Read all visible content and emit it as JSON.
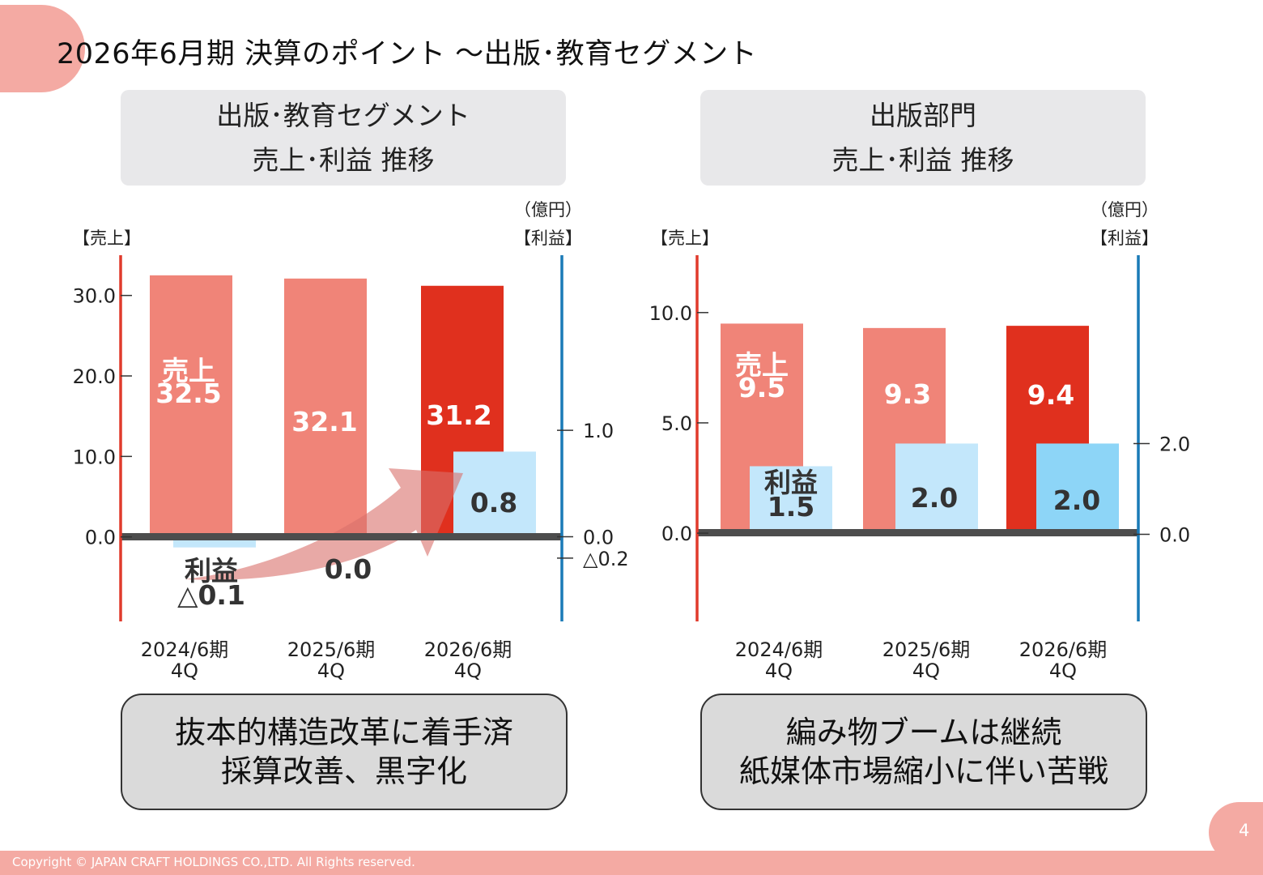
{
  "page": {
    "title": "2026年6月期 決算のポイント ～出版･教育セグメント",
    "copyright": "Copyright © JAPAN CRAFT HOLDINGS CO.,LTD. All Rights reserved.",
    "page_number": "4"
  },
  "left_panel": {
    "header_line1": "出版･教育セグメント",
    "header_line2": "売上･利益 推移",
    "summary_line1": "抜本的構造改革に着手済",
    "summary_line2": "採算改善、黒字化"
  },
  "right_panel": {
    "header_line1": "出版部門",
    "header_line2": "売上･利益 推移",
    "summary_line1": "編み物ブームは継続",
    "summary_line2": "紙媒体市場縮小に伴い苦戦"
  },
  "colors": {
    "sales_bar": "#f08478",
    "sales_bar_current": "#e0301e",
    "profit_bar": "#c3e7fb",
    "profit_bar_current": "#8dd5f7",
    "left_axis": "#e03a2c",
    "right_axis": "#1a7ab7",
    "baseline": "#4d4d4d",
    "arrow": "#d9706a"
  },
  "chart_data": [
    {
      "type": "bar",
      "categories": [
        "2024/6期\n4Q",
        "2025/6期\n4Q",
        "2026/6期\n4Q"
      ],
      "unit": "（億円）",
      "y_left_label": "【売上】",
      "y_right_label": "【利益】",
      "y_left_ticks": [
        "30.0",
        "20.0",
        "10.0",
        "0.0"
      ],
      "y_right_ticks": [
        "1.0",
        "0.0",
        "△0.2"
      ],
      "y_left_tick_values": [
        30,
        20,
        10,
        0
      ],
      "y_right_tick_values": [
        1.0,
        0.0,
        -0.2
      ],
      "y_left_lim": [
        -10.5,
        35
      ],
      "y_right_lim": [
        -0.795,
        2.645
      ],
      "series": [
        {
          "name": "売上",
          "axis": "left",
          "values": [
            32.5,
            32.1,
            31.2
          ],
          "labels": [
            "売上\n32.5",
            "32.1",
            "31.2"
          ]
        },
        {
          "name": "利益",
          "axis": "right",
          "values": [
            -0.1,
            0.0,
            0.8
          ],
          "labels": [
            "利益\n△0.1",
            "0.0",
            "0.8"
          ]
        }
      ],
      "annotation": "arrow from 2024/6期 profit to 2026/6期 profit"
    },
    {
      "type": "bar",
      "categories": [
        "2024/6期\n4Q",
        "2025/6期\n4Q",
        "2026/6期\n4Q"
      ],
      "unit": "（億円）",
      "y_left_label": "【売上】",
      "y_right_label": "【利益】",
      "y_left_ticks": [
        "10.0",
        "5.0",
        "0.0"
      ],
      "y_right_ticks": [
        "2.0",
        "0.0"
      ],
      "y_left_tick_values": [
        10,
        5,
        0
      ],
      "y_right_tick_values": [
        2.0,
        0.0
      ],
      "y_left_lim": [
        -4.0,
        12.6
      ],
      "y_right_lim": [
        -1.92,
        6.15
      ],
      "series": [
        {
          "name": "売上",
          "axis": "left",
          "values": [
            9.5,
            9.3,
            9.4
          ],
          "labels": [
            "売上\n9.5",
            "9.3",
            "9.4"
          ]
        },
        {
          "name": "利益",
          "axis": "right",
          "values": [
            1.5,
            2.0,
            2.0
          ],
          "labels": [
            "利益\n1.5",
            "2.0",
            "2.0"
          ]
        }
      ]
    }
  ]
}
